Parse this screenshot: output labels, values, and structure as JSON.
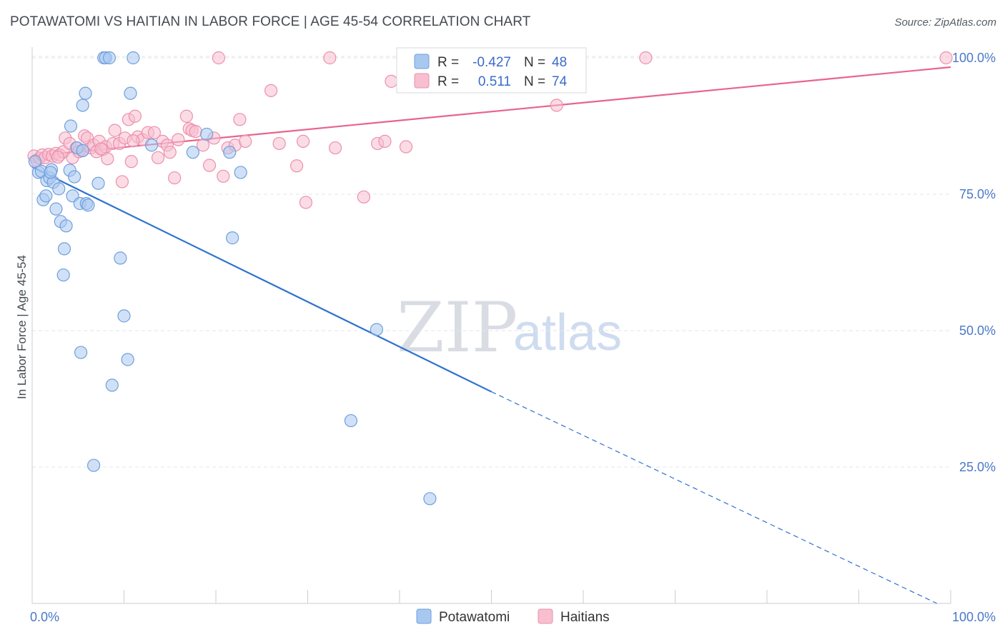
{
  "title": "POTAWATOMI VS HAITIAN IN LABOR FORCE | AGE 45-54 CORRELATION CHART",
  "source": "Source: ZipAtlas.com",
  "watermark": {
    "zip": "ZIP",
    "atlas": "atlas"
  },
  "colors": {
    "potawatomi_fill": "#a9c8f0",
    "potawatomi_stroke": "#6f9fdc",
    "potawatomi_line": "#2f72d0",
    "haitians_fill": "#f7bfd0",
    "haitians_stroke": "#ec8fae",
    "haitians_line": "#e8648e",
    "tick_label": "#4a78c8",
    "grid": "#e3e6ea"
  },
  "legend_stats": [
    {
      "r_label": "R =",
      "r_value": "-0.427",
      "n_label": "N =",
      "n_value": "48"
    },
    {
      "r_label": "R =",
      "r_value": "0.511",
      "n_label": "N =",
      "n_value": "74"
    }
  ],
  "chart_data": {
    "type": "scatter",
    "title": "POTAWATOMI VS HAITIAN IN LABOR FORCE | AGE 45-54 CORRELATION CHART",
    "xlabel": "",
    "ylabel": "In Labor Force | Age 45-54",
    "xlim": [
      0,
      100
    ],
    "ylim": [
      0,
      102
    ],
    "x_ticks": [
      "0.0%",
      "100.0%"
    ],
    "y_ticks": [
      {
        "value": 25,
        "label": "25.0%"
      },
      {
        "value": 50,
        "label": "50.0%"
      },
      {
        "value": 75,
        "label": "75.0%"
      },
      {
        "value": 100,
        "label": "100.0%"
      }
    ],
    "grid": true,
    "legend": "bottom-center",
    "series": [
      {
        "name": "Potawatomi",
        "r": -0.427,
        "n": 48,
        "trend": {
          "x0": 0,
          "y0": 80.0,
          "x1": 50,
          "y1": 38.8,
          "dashed_to_x": 98.5,
          "dashed_to_y": 0
        },
        "points": [
          [
            0.3,
            81.0
          ],
          [
            0.7,
            79.0
          ],
          [
            1.0,
            79.2
          ],
          [
            1.2,
            74.0
          ],
          [
            1.5,
            74.7
          ],
          [
            1.6,
            77.5
          ],
          [
            1.9,
            78.0
          ],
          [
            2.1,
            79.5
          ],
          [
            2.3,
            77.2
          ],
          [
            2.6,
            72.3
          ],
          [
            2.9,
            76.0
          ],
          [
            3.1,
            70.0
          ],
          [
            3.4,
            60.2
          ],
          [
            3.5,
            65.0
          ],
          [
            3.7,
            69.2
          ],
          [
            4.1,
            79.4
          ],
          [
            4.2,
            87.5
          ],
          [
            4.4,
            74.7
          ],
          [
            4.6,
            78.2
          ],
          [
            4.9,
            83.5
          ],
          [
            5.2,
            73.3
          ],
          [
            5.3,
            46.0
          ],
          [
            5.5,
            91.3
          ],
          [
            5.8,
            93.5
          ],
          [
            5.9,
            73.3
          ],
          [
            6.1,
            73.0
          ],
          [
            6.7,
            25.3
          ],
          [
            7.2,
            77.0
          ],
          [
            7.8,
            100.0
          ],
          [
            8.0,
            100.0
          ],
          [
            8.4,
            100.0
          ],
          [
            8.7,
            40.0
          ],
          [
            9.6,
            63.3
          ],
          [
            10.0,
            52.7
          ],
          [
            10.4,
            44.7
          ],
          [
            10.7,
            93.5
          ],
          [
            11.0,
            100.0
          ],
          [
            13.0,
            84.0
          ],
          [
            17.5,
            82.7
          ],
          [
            19.0,
            86.0
          ],
          [
            21.5,
            82.7
          ],
          [
            21.8,
            67.0
          ],
          [
            22.7,
            79.0
          ],
          [
            34.7,
            33.5
          ],
          [
            37.5,
            50.2
          ],
          [
            43.3,
            19.2
          ],
          [
            5.5,
            83.0
          ],
          [
            2.0,
            79.0
          ]
        ]
      },
      {
        "name": "Haitians",
        "r": 0.511,
        "n": 74,
        "trend": {
          "x0": 0,
          "y0": 82.0,
          "x1": 100,
          "y1": 98.3
        },
        "points": [
          [
            0.2,
            82.0
          ],
          [
            0.5,
            81.2
          ],
          [
            0.8,
            81.6
          ],
          [
            1.1,
            82.2
          ],
          [
            1.4,
            81.7
          ],
          [
            1.8,
            82.3
          ],
          [
            2.2,
            82.0
          ],
          [
            2.6,
            82.5
          ],
          [
            3.0,
            82.2
          ],
          [
            3.4,
            82.8
          ],
          [
            3.6,
            85.3
          ],
          [
            4.1,
            84.3
          ],
          [
            4.4,
            81.7
          ],
          [
            4.8,
            83.5
          ],
          [
            5.1,
            82.8
          ],
          [
            5.5,
            83.0
          ],
          [
            5.7,
            85.7
          ],
          [
            6.0,
            85.3
          ],
          [
            6.4,
            83.5
          ],
          [
            6.7,
            84.0
          ],
          [
            7.0,
            82.8
          ],
          [
            7.3,
            84.7
          ],
          [
            7.7,
            83.2
          ],
          [
            8.0,
            83.7
          ],
          [
            8.2,
            81.5
          ],
          [
            8.8,
            84.3
          ],
          [
            9.0,
            86.7
          ],
          [
            9.5,
            84.3
          ],
          [
            9.8,
            77.3
          ],
          [
            10.1,
            85.3
          ],
          [
            10.5,
            88.7
          ],
          [
            10.8,
            81.0
          ],
          [
            11.2,
            89.3
          ],
          [
            11.5,
            85.5
          ],
          [
            12.0,
            85.0
          ],
          [
            12.6,
            86.3
          ],
          [
            13.3,
            86.3
          ],
          [
            13.7,
            81.7
          ],
          [
            14.2,
            84.7
          ],
          [
            14.7,
            84.0
          ],
          [
            15.0,
            82.7
          ],
          [
            15.5,
            78.0
          ],
          [
            15.9,
            85.0
          ],
          [
            16.8,
            89.3
          ],
          [
            17.1,
            87.0
          ],
          [
            17.4,
            86.7
          ],
          [
            17.8,
            86.5
          ],
          [
            18.6,
            84.0
          ],
          [
            19.3,
            80.3
          ],
          [
            19.8,
            85.3
          ],
          [
            20.8,
            78.3
          ],
          [
            21.3,
            83.5
          ],
          [
            22.1,
            84.0
          ],
          [
            22.6,
            88.7
          ],
          [
            23.2,
            84.7
          ],
          [
            20.3,
            100.0
          ],
          [
            26.0,
            94.0
          ],
          [
            26.9,
            84.3
          ],
          [
            28.8,
            80.2
          ],
          [
            29.5,
            84.7
          ],
          [
            29.8,
            73.5
          ],
          [
            32.4,
            100.0
          ],
          [
            33.0,
            83.5
          ],
          [
            36.1,
            74.5
          ],
          [
            37.6,
            84.3
          ],
          [
            38.4,
            84.7
          ],
          [
            39.1,
            95.7
          ],
          [
            40.7,
            83.7
          ],
          [
            57.1,
            91.3
          ],
          [
            66.8,
            100.0
          ],
          [
            99.5,
            100.0
          ],
          [
            2.8,
            81.8
          ],
          [
            7.5,
            83.3
          ],
          [
            11.0,
            84.8
          ]
        ]
      }
    ]
  }
}
